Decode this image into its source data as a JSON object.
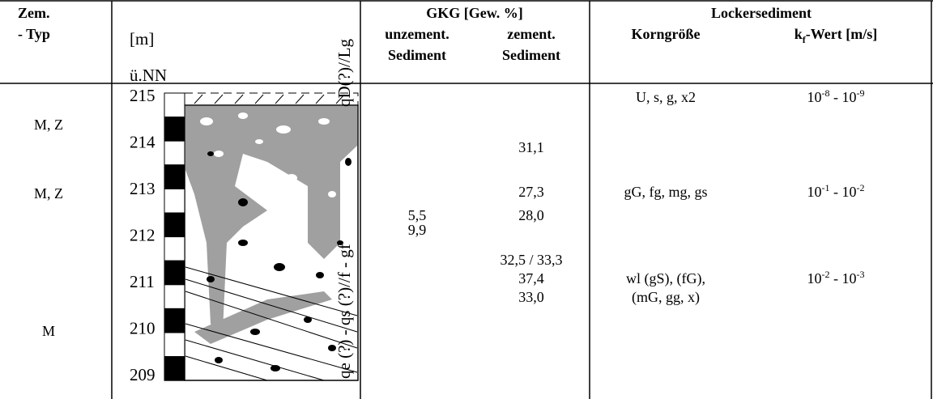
{
  "header": {
    "zem_typ": [
      "Zem.",
      "- Typ"
    ],
    "profile_unit": "[m]",
    "profile_ref": "ü.NN",
    "gkg": "GKG [Gew. %]",
    "unzement": [
      "unzement.",
      "Sediment"
    ],
    "zement": [
      "zement.",
      "Sediment"
    ],
    "lockersediment": "Lockersediment",
    "korngroesse": "Korngröße",
    "kf": {
      "main": "k",
      "sub": "f",
      "rest": "-Wert [m/s]"
    }
  },
  "profile": {
    "elevations": [
      215,
      214,
      213,
      212,
      211,
      210,
      209
    ],
    "label_upper": "qD(?)//Lg",
    "label_lower": "qe (?) - qs (?)//f - gf"
  },
  "zem_typ": [
    "M, Z",
    "M, Z",
    "M"
  ],
  "unzement": [
    "5,5",
    "9,9"
  ],
  "zement": [
    "31,1",
    "27,3",
    "28,0",
    "32,5 / 33,3",
    "37,4",
    "33,0"
  ],
  "korngroesse": [
    "U, s, g, x2",
    "gG, fg, mg, gs",
    "wl (gS), (fG),",
    "(mG, gg, x)"
  ],
  "kf": [
    [
      "10",
      "-8",
      " - 10",
      "-9"
    ],
    [
      "10",
      "-1",
      " - 10",
      "-2"
    ],
    [
      "10",
      "-2",
      " - 10",
      "-3"
    ]
  ]
}
